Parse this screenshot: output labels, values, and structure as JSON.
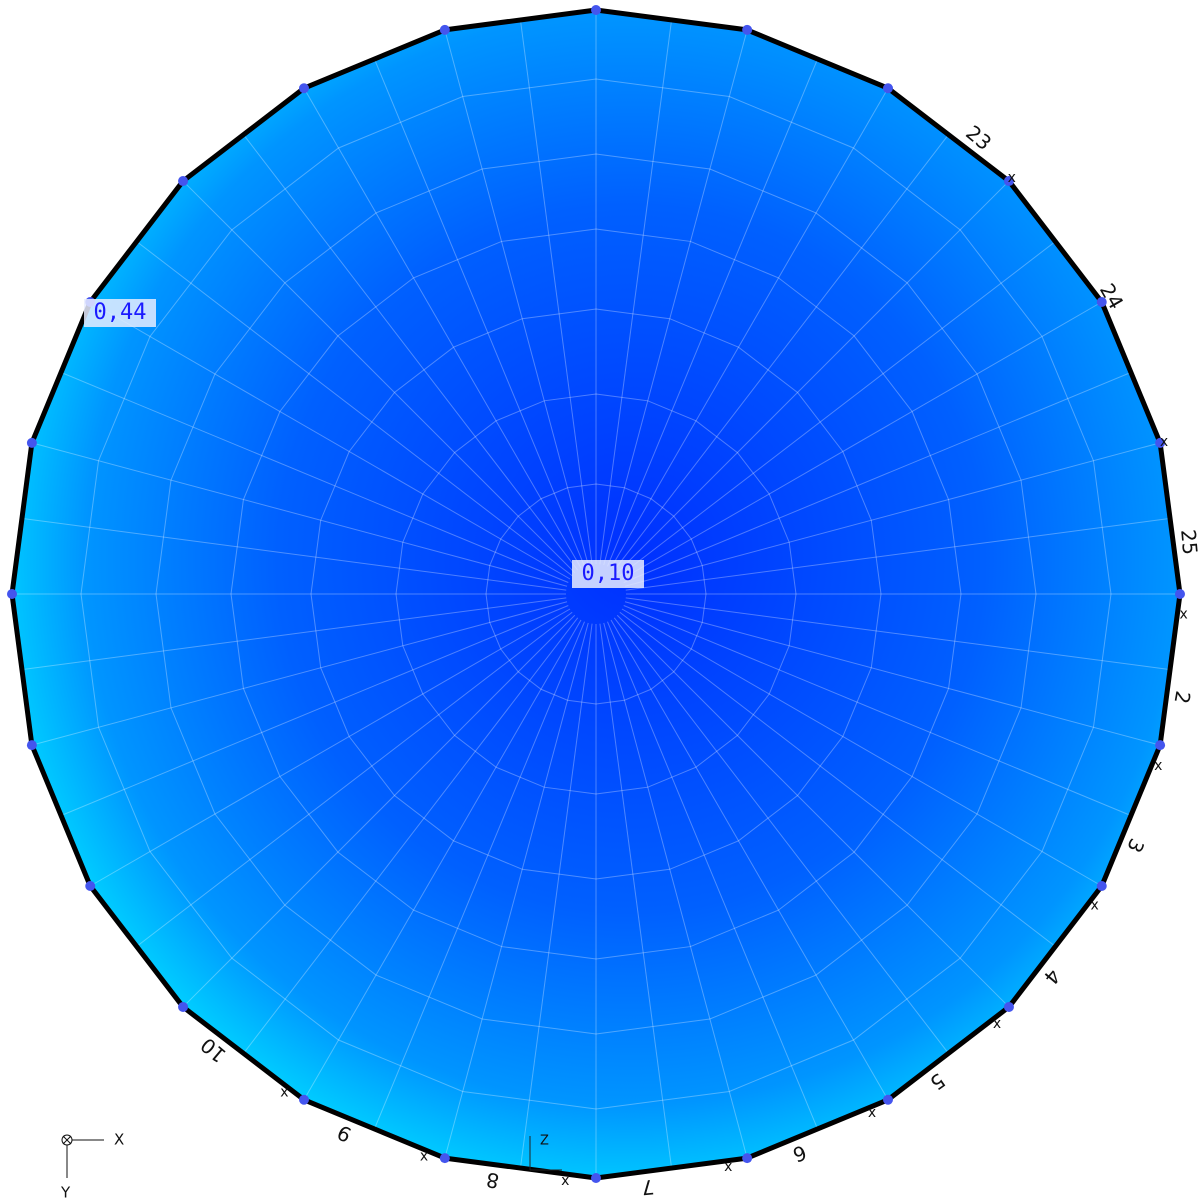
{
  "view": {
    "result_labels": {
      "max": "0,44",
      "min": "0,10"
    },
    "edge_labels": [
      "25",
      "2",
      "3",
      "4",
      "5",
      "6",
      "7",
      "8",
      "9",
      "10",
      "23",
      "24"
    ],
    "edge_markers": [
      "x",
      "x",
      "x",
      "x",
      "x",
      "x",
      "x",
      "x",
      "x",
      "x",
      "x"
    ],
    "axes": {
      "x": "X",
      "y": "Y",
      "z": "Z"
    }
  }
}
